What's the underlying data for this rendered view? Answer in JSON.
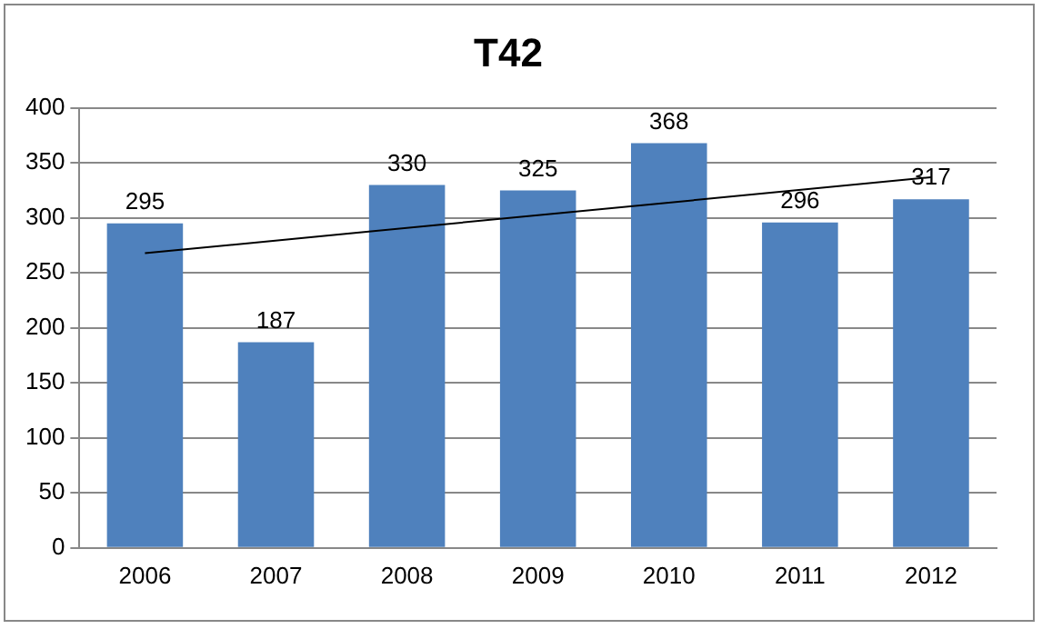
{
  "chart_data": {
    "type": "bar",
    "title": "T42",
    "categories": [
      "2006",
      "2007",
      "2008",
      "2009",
      "2010",
      "2011",
      "2012"
    ],
    "series": [
      {
        "color": "#4f81bd",
        "values": [
          295,
          187,
          330,
          325,
          368,
          296,
          317
        ],
        "value_labels": [
          "295",
          "187",
          "330",
          "325",
          "368",
          "296",
          "317"
        ]
      },
      {
        "type": "line",
        "color": "#000000",
        "values": [
          268,
          null,
          null,
          null,
          null,
          null,
          337
        ]
      }
    ],
    "ylim": [
      0,
      400
    ],
    "yticks": [
      0,
      50,
      100,
      150,
      200,
      250,
      300,
      350,
      400
    ],
    "grid": "y",
    "legend": false
  }
}
